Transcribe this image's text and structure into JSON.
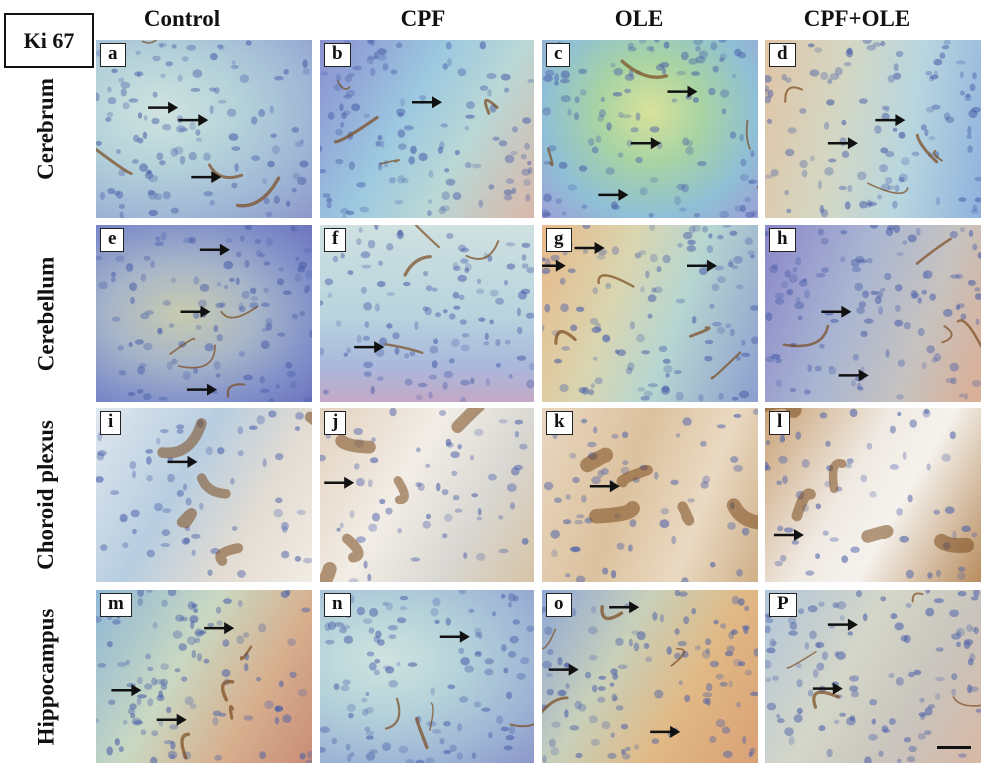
{
  "stain_label": "Ki 67",
  "columns": [
    "Control",
    "CPF",
    "OLE",
    "CPF+OLE"
  ],
  "rows": [
    "Cerebrum",
    "Cerebellum",
    "Choroid plexus",
    "Hippocampus"
  ],
  "panels": [
    {
      "letter": "a",
      "row": 0,
      "col": 0,
      "theme": "brain-cool",
      "arrows": [
        [
          0.38,
          0.38
        ],
        [
          0.52,
          0.45
        ],
        [
          0.58,
          0.77
        ]
      ]
    },
    {
      "letter": "b",
      "row": 0,
      "col": 1,
      "theme": "brain-violet",
      "arrows": [
        [
          0.57,
          0.35
        ]
      ]
    },
    {
      "letter": "c",
      "row": 0,
      "col": 2,
      "theme": "brain-green",
      "arrows": [
        [
          0.72,
          0.29
        ],
        [
          0.55,
          0.58
        ],
        [
          0.4,
          0.87
        ]
      ]
    },
    {
      "letter": "d",
      "row": 0,
      "col": 3,
      "theme": "brain-warm",
      "arrows": [
        [
          0.65,
          0.45
        ],
        [
          0.43,
          0.58
        ]
      ]
    },
    {
      "letter": "e",
      "row": 1,
      "col": 0,
      "theme": "brain-dense",
      "arrows": [
        [
          0.62,
          0.14
        ],
        [
          0.53,
          0.49
        ],
        [
          0.56,
          0.93
        ]
      ]
    },
    {
      "letter": "f",
      "row": 1,
      "col": 1,
      "theme": "brain-pale",
      "arrows": [
        [
          0.3,
          0.69
        ]
      ]
    },
    {
      "letter": "g",
      "row": 1,
      "col": 2,
      "theme": "brain-orange",
      "arrows": [
        [
          0.29,
          0.13
        ],
        [
          0.81,
          0.23
        ],
        [
          0.11,
          0.23
        ]
      ]
    },
    {
      "letter": "h",
      "row": 1,
      "col": 3,
      "theme": "brain-dense-warm",
      "arrows": [
        [
          0.4,
          0.49
        ],
        [
          0.48,
          0.85
        ]
      ]
    },
    {
      "letter": "i",
      "row": 2,
      "col": 0,
      "theme": "plexus-cool",
      "arrows": [
        [
          0.47,
          0.31
        ]
      ]
    },
    {
      "letter": "j",
      "row": 2,
      "col": 1,
      "theme": "plexus-pale",
      "arrows": [
        [
          0.16,
          0.43
        ]
      ]
    },
    {
      "letter": "k",
      "row": 2,
      "col": 2,
      "theme": "plexus-warm",
      "arrows": [
        [
          0.36,
          0.45
        ]
      ]
    },
    {
      "letter": "l",
      "row": 2,
      "col": 3,
      "theme": "plexus-brown",
      "arrows": [
        [
          0.18,
          0.73
        ]
      ]
    },
    {
      "letter": "m",
      "row": 3,
      "col": 0,
      "theme": "hippo-warm",
      "arrows": [
        [
          0.64,
          0.22
        ],
        [
          0.21,
          0.58
        ],
        [
          0.42,
          0.75
        ]
      ]
    },
    {
      "letter": "n",
      "row": 3,
      "col": 1,
      "theme": "brain-cool",
      "arrows": [
        [
          0.7,
          0.27
        ]
      ]
    },
    {
      "letter": "o",
      "row": 3,
      "col": 2,
      "theme": "hippo-orange",
      "arrows": [
        [
          0.45,
          0.1
        ],
        [
          0.17,
          0.46
        ],
        [
          0.64,
          0.82
        ]
      ]
    },
    {
      "letter": "P",
      "row": 3,
      "col": 3,
      "theme": "hippo-pale",
      "arrows": [
        [
          0.43,
          0.2
        ],
        [
          0.36,
          0.57
        ]
      ]
    }
  ],
  "colors": {
    "arrow": "#111111",
    "stain": "#7a4a1e",
    "nuclei": "#4a5fa8"
  }
}
